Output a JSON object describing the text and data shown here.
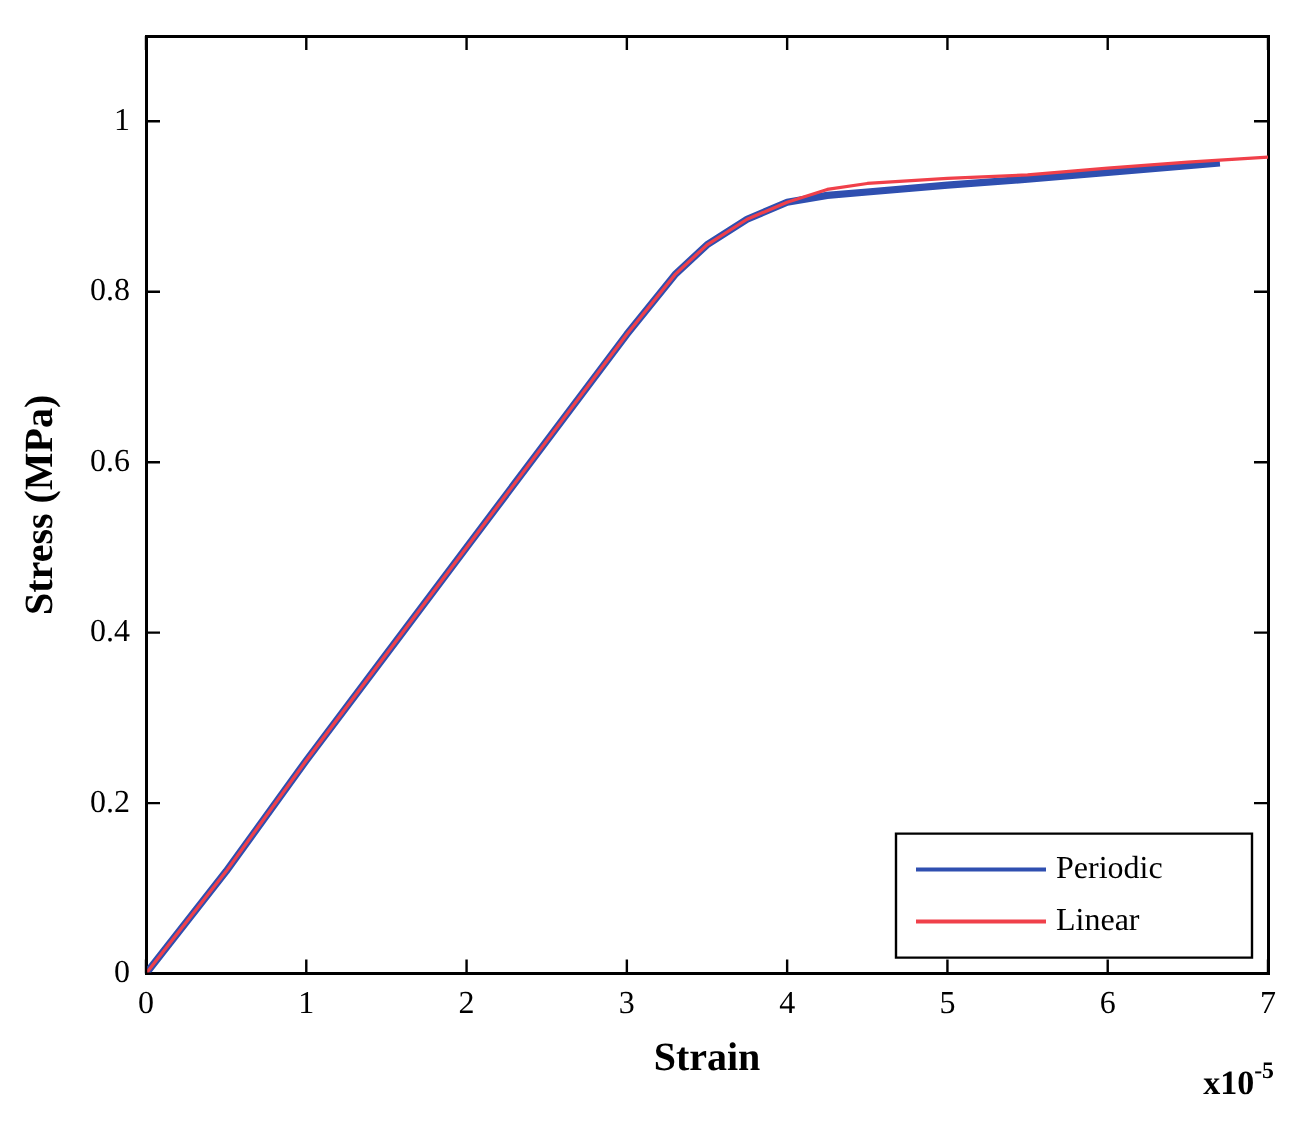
{
  "chart_data": {
    "type": "line",
    "xlabel": "Strain",
    "ylabel": "Stress (MPa)",
    "annotations": [
      "x10$^{-5}$"
    ],
    "xlim": [
      0,
      7
    ],
    "xticks": [
      0,
      1,
      2,
      3,
      4,
      5,
      6,
      7
    ],
    "ylim": [
      0,
      1.1
    ],
    "yticks": [
      0,
      0.2,
      0.4,
      0.6,
      0.8,
      1
    ],
    "grid": false,
    "legend": "bottom right",
    "marker": "none",
    "line_style": "solid",
    "series": [
      {
        "name": "Periodic",
        "color": "#2f4fb0",
        "x": [
          0,
          0.5,
          1,
          1.5,
          2,
          2.5,
          3,
          3.3,
          3.5,
          3.75,
          4,
          4.25,
          4.5,
          5,
          5.5,
          6,
          6.5,
          6.7
        ],
        "values": [
          0,
          0.12,
          0.25,
          0.375,
          0.5,
          0.625,
          0.75,
          0.82,
          0.855,
          0.885,
          0.905,
          0.913,
          0.917,
          0.925,
          0.932,
          0.94,
          0.948,
          0.951
        ]
      },
      {
        "name": "Linear",
        "color": "#f0404a",
        "x": [
          0,
          0.5,
          1,
          1.5,
          2,
          2.5,
          3,
          3.3,
          3.5,
          3.75,
          4,
          4.25,
          4.5,
          5,
          5.5,
          6,
          6.5,
          7
        ],
        "values": [
          0,
          0.12,
          0.25,
          0.375,
          0.5,
          0.625,
          0.75,
          0.82,
          0.855,
          0.885,
          0.905,
          0.92,
          0.927,
          0.933,
          0.937,
          0.945,
          0.952,
          0.958
        ]
      }
    ]
  }
}
